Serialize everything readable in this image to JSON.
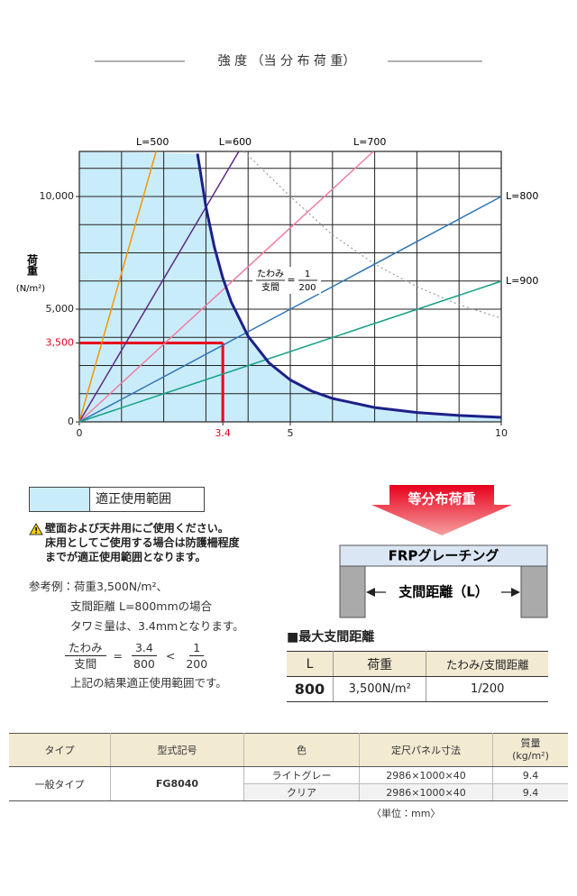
{
  "header": {
    "title": "強 度 （当 分 布 荷 重）"
  },
  "chart_data": {
    "type": "line",
    "y_label": "荷重",
    "y_unit": "(N/m²)",
    "xlim": [
      0,
      10
    ],
    "ylim": [
      0,
      12000
    ],
    "xticks": [
      0,
      3.4,
      5,
      10
    ],
    "yticks": [
      0,
      {
        "value": 3500,
        "label": "3,500"
      },
      {
        "value": 5000,
        "label": "5,000"
      },
      {
        "value": 10000,
        "label": "10,000"
      }
    ],
    "grid_x": [
      1,
      2,
      3,
      4,
      5,
      6,
      7,
      8,
      9
    ],
    "grid_y": [
      1250,
      2500,
      3750,
      5000,
      6250,
      7500,
      8750,
      10000,
      11250
    ],
    "range_fill": "#c9ecfa",
    "series": [
      {
        "name": "L=500",
        "color": "#f39800",
        "x": [
          0,
          1.82
        ],
        "values": [
          0,
          12000
        ]
      },
      {
        "name": "L=600",
        "color": "#5b2a86",
        "x": [
          0,
          3.78
        ],
        "values": [
          0,
          12000
        ]
      },
      {
        "name": "L=700",
        "color": "#f07ca2",
        "x": [
          0,
          6.97
        ],
        "values": [
          0,
          12000
        ]
      },
      {
        "name": "L=800",
        "color": "#2e75b6",
        "x": [
          0,
          10
        ],
        "values": [
          0,
          10000
        ]
      },
      {
        "name": "L=900",
        "color": "#14a085",
        "x": [
          0,
          10
        ],
        "values": [
          0,
          6240
        ]
      }
    ],
    "limit_curve": {
      "color": "#1d2088",
      "x": [
        2.8,
        3.0,
        3.2,
        3.4,
        3.6,
        4.0,
        4.5,
        5,
        5.5,
        6,
        7,
        8,
        9,
        10
      ],
      "values": [
        11900,
        9540,
        7760,
        6390,
        5320,
        3800,
        2610,
        1860,
        1370,
        1040,
        634,
        413,
        284,
        200
      ]
    },
    "reference_curve": {
      "color": "#9a9a9a",
      "x": [
        3.9,
        5,
        6,
        7,
        8,
        9,
        10
      ],
      "values": [
        12000,
        10000,
        8300,
        7000,
        6000,
        5200,
        4600
      ]
    },
    "example": {
      "x": 3.4,
      "y": 3500,
      "color": "#e8001c"
    },
    "annotation": {
      "numerator": "たわみ",
      "denominator": "支間",
      "equals": "=",
      "ratio_numerator": "1",
      "ratio_denominator": "200"
    }
  },
  "legend": {
    "label": "適正使用範囲"
  },
  "warning": {
    "lines": [
      "壁面および天井用にご使用ください。",
      "床用としてご使用する場合は防護柵程度",
      "までが適正使用範囲となります。"
    ]
  },
  "example_text": {
    "lines": [
      "参考例：荷重3,500N/m²、",
      "支間距離 L=800mmの場合",
      "タワミ量は、3.4mmとなります。"
    ],
    "formula": {
      "numerator": "たわみ",
      "denominator": "支間",
      "equals": "=",
      "value_numerator": "3.4",
      "value_denominator": "800",
      "less": "<",
      "limit_numerator": "1",
      "limit_denominator": "200"
    },
    "conclusion": "上記の結果適正使用範囲です。"
  },
  "diagram": {
    "load": "等分布荷重",
    "panel": "FRPグレーチング",
    "span": "支間距離（L）"
  },
  "max_span": {
    "title": "■最大支間距離",
    "headers": [
      "L",
      "荷重",
      "たわみ/支間距離"
    ],
    "row": [
      "800",
      "3,500N/m²",
      "1/200"
    ]
  },
  "spec_table": {
    "headers": [
      "タイプ",
      "型式記号",
      "色",
      "定尺パネル寸法",
      "質量"
    ],
    "weight_unit": "(kg/m²)",
    "type": "一般タイプ",
    "model": "FG8040",
    "variants": [
      [
        "ライトグレー",
        "2986×1000×40",
        "9.4"
      ],
      [
        "クリア",
        "2986×1000×40",
        "9.4"
      ]
    ]
  },
  "unit_note": "〈単位：mm〉"
}
